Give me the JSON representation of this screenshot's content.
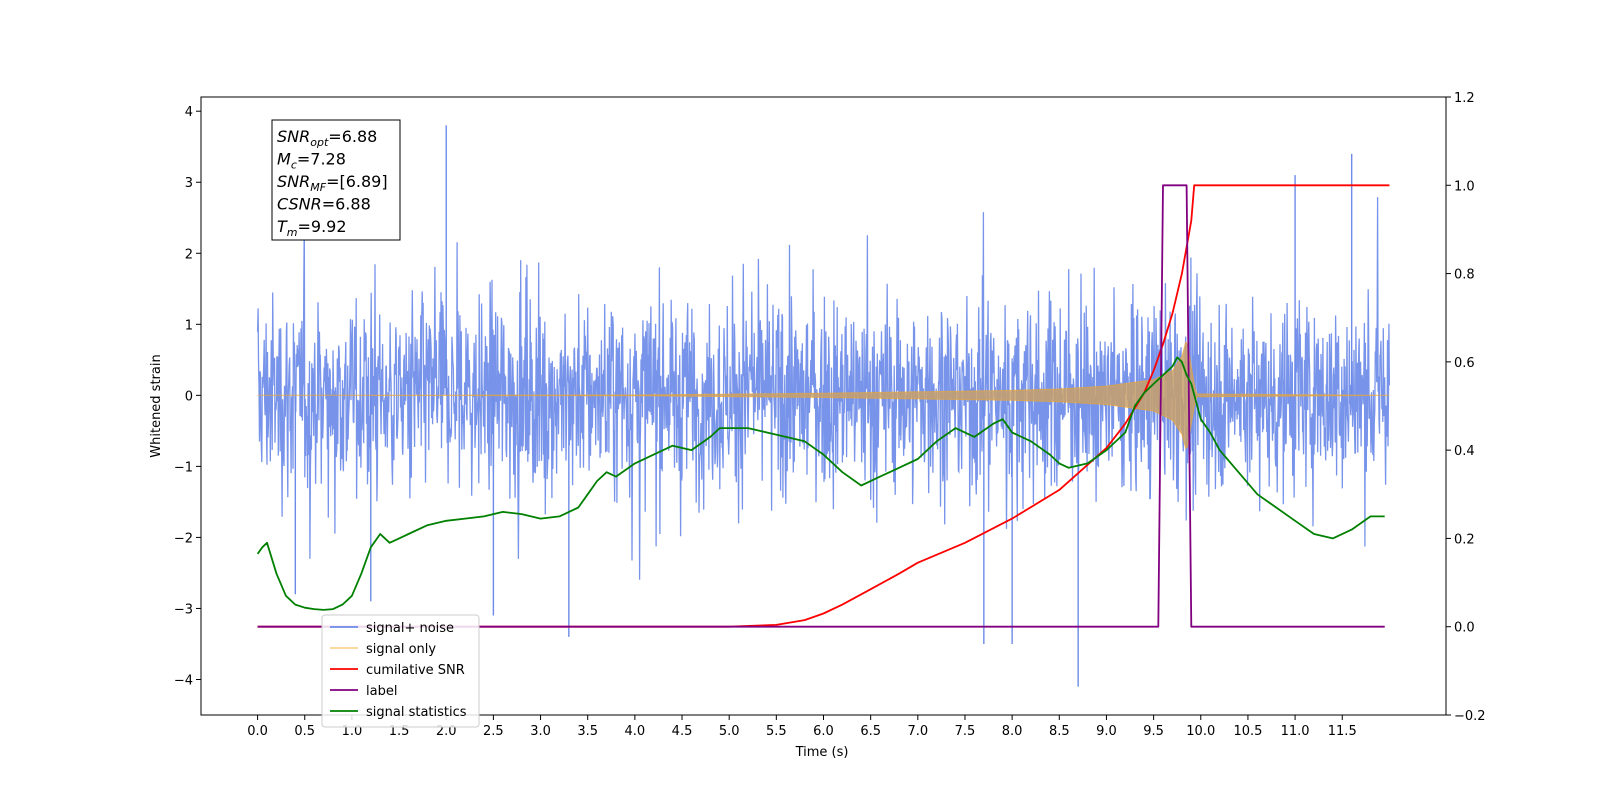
{
  "chart_data": {
    "type": "line",
    "title": "",
    "xlabel": "Time (s)",
    "ylabel": "Whitened strain",
    "y2label": "",
    "xlim": [
      -0.6,
      12.6
    ],
    "ylim": [
      -4.5,
      4.2
    ],
    "y2lim": [
      -0.2,
      1.2
    ],
    "xticks": [
      "0.0",
      "0.5",
      "1.0",
      "1.5",
      "2.0",
      "2.5",
      "3.0",
      "3.5",
      "4.0",
      "4.5",
      "5.0",
      "5.5",
      "6.0",
      "6.5",
      "7.0",
      "7.5",
      "8.0",
      "8.5",
      "9.0",
      "9.5",
      "10.0",
      "10.5",
      "11.0",
      "11.5"
    ],
    "yticks": [
      "4",
      "3",
      "2",
      "1",
      "0",
      "−1",
      "−2",
      "−3",
      "−4"
    ],
    "y2ticks": [
      "1.2",
      "1.0",
      "0.8",
      "0.6",
      "0.4",
      "0.2",
      "0.0",
      "−0.2"
    ],
    "grid": false,
    "legend_position": "bottom-left",
    "annotation": {
      "lines": [
        {
          "main": "SNR",
          "sub": "opt",
          "value": "=6.88"
        },
        {
          "main": "M",
          "sub": "c",
          "value": "=7.28"
        },
        {
          "main": "SNR",
          "sub": "MF",
          "value": "=[6.89]"
        },
        {
          "main": "CSNR",
          "sub": "",
          "value": "=6.88"
        },
        {
          "main": "T",
          "sub": "m",
          "value": "=9.92"
        }
      ]
    },
    "noise": {
      "x_range": [
        0.0,
        12.0
      ],
      "typical_range": [
        -2.0,
        2.2
      ],
      "extreme_points": [
        [
          0.4,
          -2.8
        ],
        [
          1.2,
          -2.9
        ],
        [
          2.0,
          3.8
        ],
        [
          2.5,
          -3.1
        ],
        [
          3.3,
          -3.4
        ],
        [
          7.7,
          -3.5
        ],
        [
          8.0,
          -3.5
        ],
        [
          8.7,
          -4.1
        ],
        [
          11.6,
          3.4
        ],
        [
          11.0,
          3.1
        ]
      ]
    },
    "signal_envelope": {
      "x": [
        0.0,
        4.0,
        6.0,
        7.0,
        8.0,
        8.5,
        9.0,
        9.5,
        9.7,
        9.8,
        9.85,
        9.9,
        9.95,
        12.0
      ],
      "amplitude": [
        0.0,
        0.005,
        0.03,
        0.05,
        0.07,
        0.09,
        0.13,
        0.22,
        0.35,
        0.55,
        0.8,
        0.4,
        0.02,
        0.0
      ]
    },
    "series": [
      {
        "name": "signal+ noise",
        "color": "#6c8be8",
        "axis": "left",
        "style": "dense-noise"
      },
      {
        "name": "signal only",
        "color": "#f5a623",
        "axis": "left",
        "style": "chirp"
      },
      {
        "name": "cumilative SNR",
        "color": "#ff0000",
        "axis": "right",
        "x": [
          0.0,
          5.0,
          5.5,
          5.8,
          6.0,
          6.2,
          6.5,
          6.8,
          7.0,
          7.5,
          8.0,
          8.5,
          9.0,
          9.2,
          9.4,
          9.5,
          9.6,
          9.7,
          9.8,
          9.9,
          9.93,
          12.0
        ],
        "y": [
          0.0,
          0.0,
          0.004,
          0.015,
          0.03,
          0.05,
          0.085,
          0.12,
          0.145,
          0.19,
          0.245,
          0.31,
          0.405,
          0.46,
          0.53,
          0.58,
          0.64,
          0.71,
          0.8,
          0.92,
          1.0,
          1.0
        ]
      },
      {
        "name": "label",
        "color": "#800080",
        "axis": "right",
        "x": [
          0.0,
          9.55,
          9.6,
          9.85,
          9.9,
          11.95
        ],
        "y": [
          0.0,
          0.0,
          1.0,
          1.0,
          0.0,
          0.0
        ]
      },
      {
        "name": "signal statistics",
        "color": "#008000",
        "axis": "right",
        "x": [
          0.0,
          0.05,
          0.1,
          0.2,
          0.3,
          0.4,
          0.5,
          0.6,
          0.7,
          0.8,
          0.9,
          1.0,
          1.1,
          1.2,
          1.3,
          1.4,
          1.5,
          1.6,
          1.8,
          2.0,
          2.2,
          2.4,
          2.6,
          2.8,
          3.0,
          3.2,
          3.4,
          3.5,
          3.6,
          3.7,
          3.8,
          4.0,
          4.2,
          4.4,
          4.6,
          4.8,
          4.9,
          5.0,
          5.2,
          5.4,
          5.6,
          5.8,
          6.0,
          6.2,
          6.4,
          6.6,
          6.8,
          7.0,
          7.2,
          7.4,
          7.6,
          7.8,
          7.9,
          8.0,
          8.2,
          8.4,
          8.5,
          8.6,
          8.8,
          9.0,
          9.2,
          9.3,
          9.4,
          9.5,
          9.6,
          9.7,
          9.75,
          9.8,
          9.85,
          9.9,
          9.95,
          10.0,
          10.1,
          10.2,
          10.4,
          10.6,
          10.8,
          11.0,
          11.2,
          11.4,
          11.6,
          11.8,
          11.95
        ],
        "y": [
          0.165,
          0.18,
          0.19,
          0.12,
          0.07,
          0.05,
          0.043,
          0.04,
          0.038,
          0.04,
          0.05,
          0.07,
          0.12,
          0.18,
          0.21,
          0.19,
          0.2,
          0.21,
          0.23,
          0.24,
          0.245,
          0.25,
          0.26,
          0.255,
          0.245,
          0.25,
          0.27,
          0.3,
          0.33,
          0.35,
          0.34,
          0.37,
          0.39,
          0.41,
          0.4,
          0.43,
          0.45,
          0.45,
          0.45,
          0.44,
          0.43,
          0.42,
          0.39,
          0.35,
          0.32,
          0.34,
          0.36,
          0.38,
          0.42,
          0.45,
          0.43,
          0.46,
          0.47,
          0.44,
          0.42,
          0.39,
          0.37,
          0.36,
          0.37,
          0.4,
          0.44,
          0.5,
          0.53,
          0.55,
          0.57,
          0.59,
          0.61,
          0.6,
          0.57,
          0.55,
          0.51,
          0.47,
          0.44,
          0.4,
          0.35,
          0.3,
          0.27,
          0.24,
          0.21,
          0.2,
          0.22,
          0.25,
          0.25
        ]
      }
    ]
  }
}
